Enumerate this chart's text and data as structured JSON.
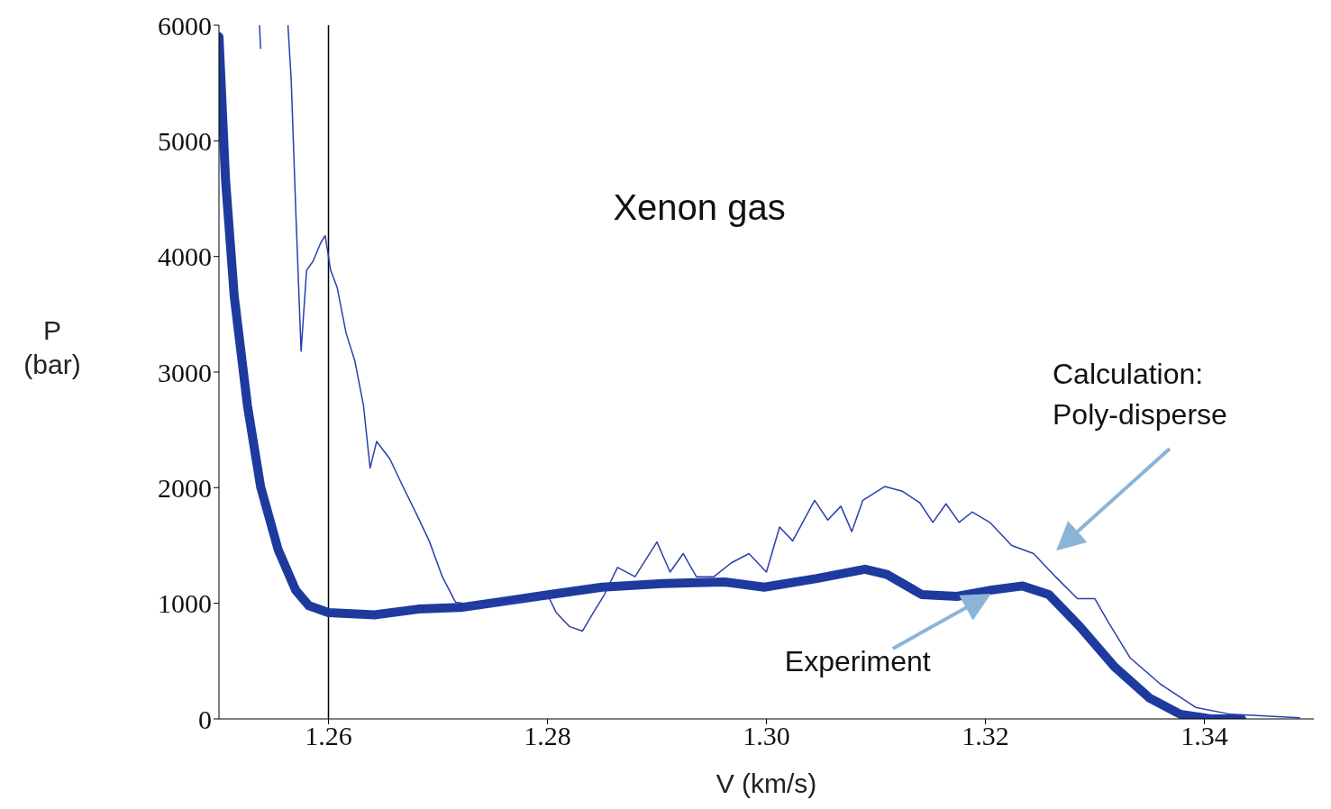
{
  "chart_data": {
    "type": "line",
    "title": "Xenon gas",
    "xlabel": "V (km/s)",
    "ylabel": "P (bar)",
    "xlim": [
      1.25,
      1.35
    ],
    "xticks": [
      1.26,
      1.28,
      {
        "value": 1.3,
        "label": "1.30"
      },
      1.32,
      1.34
    ],
    "ylim": [
      0,
      6000
    ],
    "yticks": [
      0,
      1000,
      2000,
      3000,
      4000,
      5000,
      6000
    ],
    "ref_lines": [
      {
        "axis": "x",
        "value": 1.26,
        "color": "#000000"
      }
    ],
    "series": [
      {
        "color": "#1f3a9e",
        "x": [
          1.25,
          1.2506,
          1.2514,
          1.2526,
          1.2538,
          1.2554,
          1.257,
          1.2582,
          1.26,
          1.2642,
          1.2682,
          1.2722,
          1.2762,
          1.2802,
          1.285,
          1.2906,
          1.2962,
          1.2998,
          1.3046,
          1.309,
          1.311,
          1.3142,
          1.3174,
          1.3206,
          1.3234,
          1.3258,
          1.3286,
          1.3318,
          1.335,
          1.3378,
          1.3406,
          1.3434
        ],
        "values": [
          5900,
          4660,
          3650,
          2710,
          2010,
          1465,
          1115,
          980,
          920,
          900,
          950,
          965,
          1020,
          1075,
          1140,
          1170,
          1185,
          1140,
          1215,
          1295,
          1250,
          1075,
          1060,
          1115,
          1150,
          1075,
          800,
          450,
          180,
          40,
          0,
          0
        ]
      },
      {
        "color": "#2a3fae",
        "x": [
          1.2537,
          1.2538,
          1.255,
          1.2563,
          1.2566,
          1.257,
          1.2575,
          1.258,
          1.2586,
          1.2593,
          1.2597,
          1.2602,
          1.2608,
          1.2616,
          1.2624,
          1.2632,
          1.2638,
          1.2644,
          1.2656,
          1.2668,
          1.268,
          1.2692,
          1.2704,
          1.2716,
          1.2736,
          1.2768,
          1.28,
          1.2808,
          1.282,
          1.2832,
          1.2842,
          1.2852,
          1.2864,
          1.288,
          1.29,
          1.2912,
          1.2924,
          1.2936,
          1.2952,
          1.2968,
          1.2984,
          1.3,
          1.3012,
          1.3024,
          1.3044,
          1.3056,
          1.3068,
          1.3078,
          1.3088,
          1.3108,
          1.3124,
          1.314,
          1.3152,
          1.3164,
          1.3176,
          1.3188,
          1.3204,
          1.3224,
          1.3244,
          1.3264,
          1.3284,
          1.33,
          1.3312,
          1.3332,
          1.336,
          1.3392,
          1.3424,
          1.3487
        ],
        "values": [
          6000,
          5800,
          null,
          6000,
          5520,
          4430,
          3180,
          3880,
          3960,
          4120,
          4180,
          3880,
          3730,
          3340,
          3100,
          2710,
          2170,
          2400,
          2250,
          2010,
          1780,
          1540,
          1230,
          1010,
          980,
          1000,
          1075,
          920,
          800,
          760,
          920,
          1075,
          1310,
          1230,
          1530,
          1270,
          1430,
          1230,
          1230,
          1350,
          1430,
          1270,
          1660,
          1540,
          1890,
          1720,
          1840,
          1620,
          1890,
          2010,
          1970,
          1870,
          1700,
          1860,
          1700,
          1790,
          1700,
          1500,
          1430,
          1230,
          1040,
          1040,
          840,
          530,
          300,
          100,
          40,
          10
        ]
      }
    ],
    "annotations": [
      {
        "text": "Experiment",
        "x": 1.3206,
        "y": 1115
      },
      "Calculation: Poly-disperse"
    ]
  }
}
